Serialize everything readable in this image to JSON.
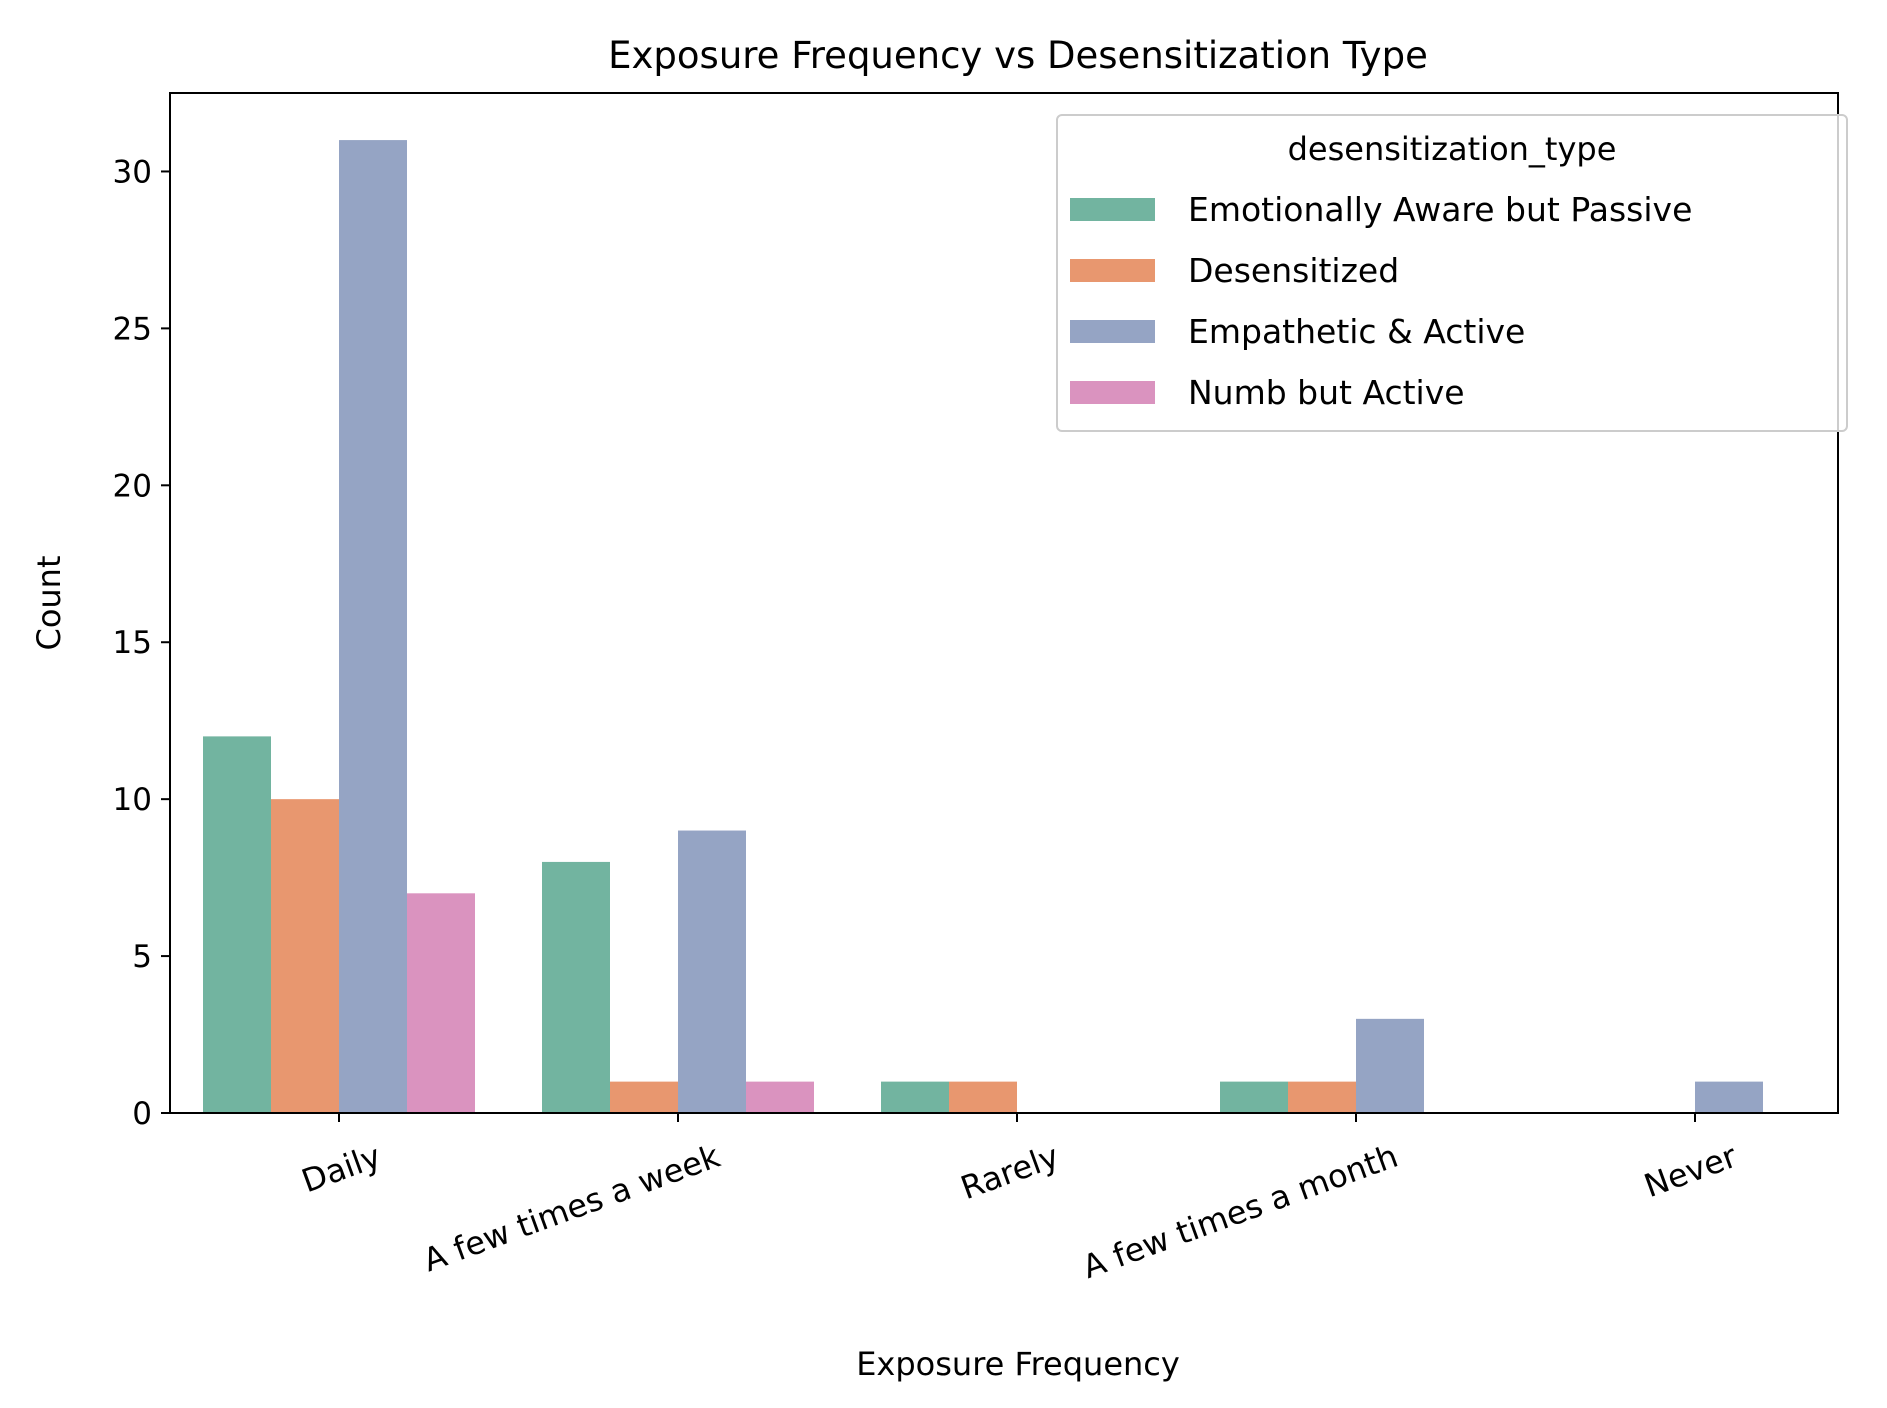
{
  "chart_data": {
    "type": "bar",
    "title": "Exposure Frequency vs Desensitization Type",
    "xlabel": "Exposure Frequency",
    "ylabel": "Count",
    "categories": [
      "Daily",
      "A few times a week",
      "Rarely",
      "A few times a month",
      "Never"
    ],
    "yticks": [
      "0",
      "5",
      "10",
      "15",
      "20",
      "25",
      "30"
    ],
    "ylim": [
      0,
      32.5
    ],
    "grid": false,
    "legend": {
      "title": "desensitization_type",
      "placement": "top-right"
    },
    "series": [
      {
        "name": "Emotionally Aware but Passive",
        "color": "#72b4a0",
        "values": [
          12,
          8,
          1,
          1,
          0
        ]
      },
      {
        "name": "Desensitized",
        "color": "#e8976f",
        "values": [
          10,
          1,
          1,
          1,
          0
        ]
      },
      {
        "name": "Empathetic & Active",
        "color": "#95a4c4",
        "values": [
          31,
          9,
          0,
          3,
          1
        ]
      },
      {
        "name": "Numb but Active",
        "color": "#da93bf",
        "values": [
          7,
          1,
          0,
          0,
          0
        ]
      }
    ]
  }
}
